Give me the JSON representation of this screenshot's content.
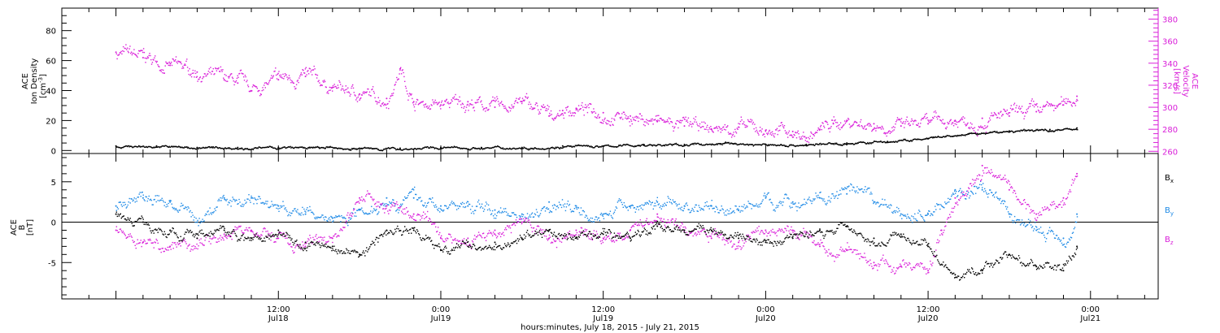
{
  "chart_data": [
    {
      "type": "scatter",
      "title": "",
      "ylabel": "ACE Ion Density [cm^-3]",
      "ylabel_lines": [
        "ACE",
        "Ion Density",
        "[cm",
        "-3",
        "]"
      ],
      "ylim": [
        -2,
        95
      ],
      "yticks": [
        0,
        20,
        40,
        60,
        80
      ],
      "y2label": "ACE Velocity [km/s]",
      "y2label_lines": [
        "ACE",
        "Velocity",
        "[km/s]"
      ],
      "y2lim": [
        258,
        390
      ],
      "y2ticks": [
        260,
        280,
        300,
        320,
        340,
        360,
        380
      ],
      "grid": false,
      "series": [
        {
          "axis": "left",
          "color": "#000000",
          "x_hours": [
            0,
            3,
            6,
            9,
            12,
            15,
            18,
            21,
            24,
            27,
            30,
            33,
            36,
            39,
            42,
            45,
            48,
            51,
            54,
            57,
            60,
            63,
            66,
            69,
            71
          ],
          "y": [
            3,
            3,
            2,
            2,
            2,
            2,
            1.5,
            1.5,
            2,
            2,
            2,
            3,
            3,
            4,
            4,
            5,
            4,
            4,
            5,
            6,
            8,
            11,
            13,
            14,
            15
          ]
        },
        {
          "axis": "right",
          "color": "#d91ed9",
          "x_hours": [
            0,
            2,
            4,
            6,
            8,
            9,
            10,
            12,
            14,
            16,
            18,
            20,
            21,
            22,
            24,
            26,
            28,
            30,
            32,
            33,
            34,
            36,
            38,
            40,
            42,
            44,
            46,
            48,
            50,
            51,
            52,
            53,
            54,
            56,
            58,
            60,
            62,
            64,
            66,
            68,
            70,
            71
          ],
          "y": [
            350,
            345,
            338,
            332,
            325,
            322,
            315,
            325,
            328,
            318,
            312,
            308,
            335,
            305,
            302,
            305,
            300,
            305,
            292,
            297,
            299,
            295,
            292,
            287,
            283,
            280,
            282,
            279,
            278,
            272,
            280,
            285,
            288,
            285,
            283,
            285,
            288,
            290,
            292,
            296,
            302,
            310
          ]
        }
      ]
    },
    {
      "type": "scatter",
      "title": "",
      "ylabel": "ACE B [nT]",
      "ylabel_lines": [
        "ACE",
        "B",
        "[nT]"
      ],
      "ylim": [
        -9.5,
        8.5
      ],
      "yticks": [
        -5,
        0,
        5
      ],
      "zero_line": true,
      "legend_position": "right",
      "grid": false,
      "series": [
        {
          "name": "B_x",
          "color": "#000000",
          "x_hours": [
            0,
            2,
            4,
            6,
            8,
            10,
            12,
            14,
            16,
            18,
            20,
            22,
            24,
            26,
            28,
            30,
            32,
            34,
            36,
            38,
            40,
            42,
            44,
            46,
            48,
            50,
            52,
            54,
            56,
            58,
            60,
            62,
            64,
            66,
            68,
            70,
            71
          ],
          "y": [
            1,
            0,
            -1,
            -2,
            -1,
            -2,
            -1,
            -2.5,
            -3,
            -4,
            -1,
            -1,
            -3.5,
            -3,
            -2.5,
            -2,
            -1,
            -2,
            -1.5,
            -2,
            -0.5,
            -1,
            -1,
            -2,
            -2.5,
            -2,
            -1,
            -0.5,
            -2,
            -1.5,
            -3,
            -6.5,
            -6,
            -4,
            -5.5,
            -6,
            -3
          ]
        },
        {
          "name": "B_y",
          "color": "#1e8ae6",
          "x_hours": [
            0,
            2,
            4,
            6,
            8,
            10,
            12,
            14,
            16,
            18,
            20,
            22,
            24,
            26,
            28,
            30,
            32,
            34,
            36,
            38,
            40,
            42,
            44,
            46,
            48,
            50,
            52,
            54,
            56,
            58,
            60,
            62,
            64,
            66,
            68,
            70,
            71
          ],
          "y": [
            2,
            3,
            2.5,
            0,
            3,
            3,
            2,
            1,
            0.5,
            1.5,
            3,
            3,
            2,
            2,
            1.5,
            1,
            2.5,
            2,
            1,
            2,
            2.5,
            2,
            2,
            1.5,
            3,
            2.5,
            3,
            3.5,
            2.5,
            1,
            1,
            4,
            4,
            1,
            -1,
            -2,
            1
          ]
        },
        {
          "name": "B_z",
          "color": "#d91ed9",
          "x_hours": [
            0,
            2,
            4,
            6,
            8,
            10,
            12,
            14,
            16,
            18,
            20,
            22,
            24,
            26,
            28,
            30,
            32,
            34,
            36,
            38,
            40,
            42,
            44,
            46,
            48,
            50,
            52,
            54,
            56,
            58,
            60,
            61,
            62,
            64,
            66,
            68,
            70,
            71
          ],
          "y": [
            -1,
            -2.5,
            -3,
            -2,
            -1.5,
            -1,
            -2,
            -3,
            -2,
            3,
            2,
            1,
            -2,
            -2,
            -1,
            0,
            -2,
            -1,
            -2,
            -1,
            1,
            -1,
            -2,
            -2.5,
            -1,
            -1,
            -3,
            -3.5,
            -5,
            -5.5,
            -6,
            -1,
            3,
            7,
            4,
            1,
            3,
            6
          ]
        }
      ]
    }
  ],
  "time_axis": {
    "label": "hours:minutes, July 18, 2015 - July 21, 2015",
    "ticks": [
      {
        "hour": 12,
        "time": "12:00",
        "date": "Jul18"
      },
      {
        "hour": 24,
        "time": "0:00",
        "date": "Jul19"
      },
      {
        "hour": 36,
        "time": "12:00",
        "date": "Jul19"
      },
      {
        "hour": 48,
        "time": "0:00",
        "date": "Jul20"
      },
      {
        "hour": 60,
        "time": "12:00",
        "date": "Jul20"
      },
      {
        "hour": 72,
        "time": "0:00",
        "date": "Jul21"
      }
    ],
    "minor_step_hours": 2
  },
  "legend": [
    {
      "base": "B",
      "sub": "x",
      "color": "#000000"
    },
    {
      "base": "B",
      "sub": "y",
      "color": "#1e8ae6"
    },
    {
      "base": "B",
      "sub": "z",
      "color": "#d91ed9"
    }
  ]
}
